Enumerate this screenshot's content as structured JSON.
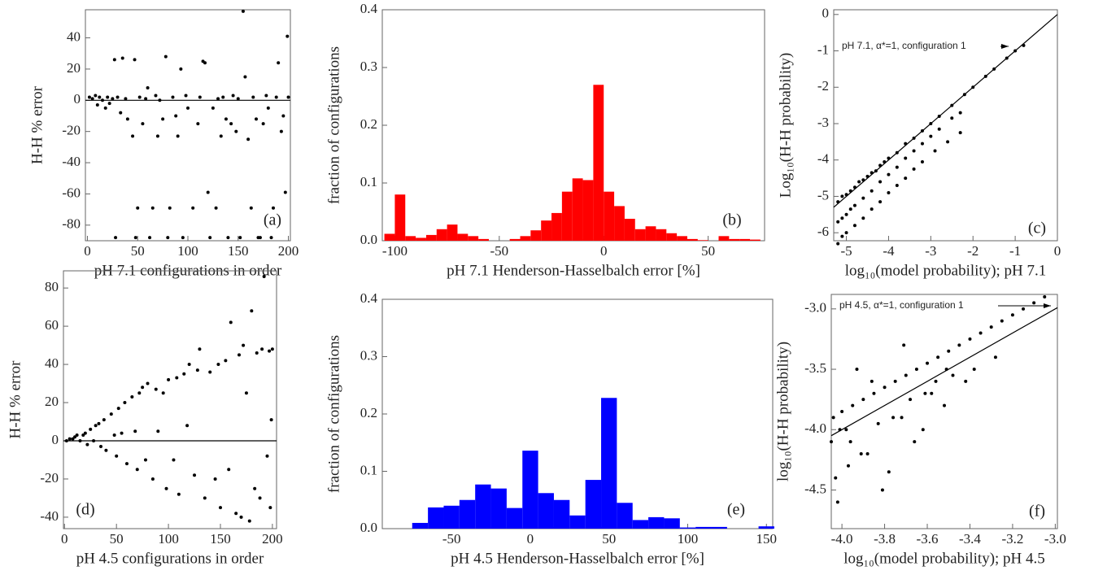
{
  "chart_data": [
    {
      "type": "scatter",
      "panel_label": "(a)",
      "x_label": "pH 7.1 configurations in order",
      "y_label": "H-H % error",
      "color": "#000000",
      "zero_line": true,
      "xlim": [
        -2,
        202
      ],
      "ylim": [
        -90,
        58
      ],
      "xticks": [
        0,
        50,
        100,
        150,
        200
      ],
      "yticks": [
        -80,
        -60,
        -40,
        -20,
        0,
        20,
        40
      ],
      "x": [
        2,
        5,
        8,
        10,
        12,
        15,
        18,
        20,
        22,
        25,
        27,
        28,
        30,
        33,
        35,
        38,
        40,
        45,
        47,
        48,
        50,
        52,
        55,
        58,
        60,
        62,
        65,
        68,
        70,
        72,
        75,
        78,
        80,
        82,
        85,
        88,
        90,
        93,
        95,
        98,
        100,
        105,
        110,
        112,
        115,
        117,
        120,
        122,
        125,
        128,
        130,
        133,
        135,
        138,
        140,
        143,
        145,
        148,
        150,
        152,
        155,
        157,
        160,
        163,
        165,
        168,
        170,
        172,
        175,
        178,
        180,
        183,
        185,
        188,
        190,
        193,
        195,
        197,
        199,
        200
      ],
      "values": [
        2,
        1,
        3,
        -3,
        2,
        0,
        -5,
        2,
        -2,
        1,
        26,
        -88,
        2,
        -8,
        27,
        1,
        -12,
        -23,
        26,
        -88,
        -69,
        2,
        -15,
        1,
        8,
        -88,
        -69,
        3,
        -23,
        0,
        -12,
        28,
        -88,
        -69,
        2,
        -10,
        -23,
        20,
        -88,
        3,
        -5,
        -69,
        -15,
        2,
        25,
        24,
        -59,
        -88,
        -5,
        -69,
        1,
        -23,
        2,
        -12,
        -88,
        -15,
        3,
        -20,
        1,
        -88,
        57,
        15,
        -25,
        -69,
        2,
        -12,
        -88,
        -88,
        -15,
        3,
        -5,
        -88,
        -69,
        2,
        24,
        -20,
        -10,
        -59,
        41,
        2
      ]
    },
    {
      "type": "histogram",
      "panel_label": "(b)",
      "x_label": "pH 7.1 Henderson-Hasselbalch error [%]",
      "y_label": "fraction of configurations",
      "color": "#ff0000",
      "xlim": [
        -106,
        77
      ],
      "ylim": [
        0,
        0.4
      ],
      "xticks": [
        -100,
        -50,
        0,
        50
      ],
      "yticks": [
        {
          "value": 0,
          "label": "0.0"
        },
        0.1,
        0.2,
        0.3,
        0.4
      ],
      "bins": [
        -105,
        -100,
        -95,
        -90,
        -85,
        -80,
        -75,
        -70,
        -65,
        -60,
        -55,
        -50,
        -45,
        -40,
        -35,
        -30,
        -25,
        -20,
        -15,
        -10,
        -5,
        0,
        5,
        10,
        15,
        20,
        25,
        30,
        35,
        40,
        45,
        50,
        55,
        60,
        65,
        70,
        75
      ],
      "values": [
        0.012,
        0.08,
        0.008,
        0.005,
        0.01,
        0.02,
        0.028,
        0.012,
        0.008,
        0.003,
        0,
        0,
        0.003,
        0.008,
        0.018,
        0.035,
        0.048,
        0.085,
        0.108,
        0.105,
        0.27,
        0.085,
        0.06,
        0.038,
        0.02,
        0.025,
        0.02,
        0.013,
        0.008,
        0.003,
        0.001,
        0,
        0.008,
        0.003,
        0.003,
        0.002
      ]
    },
    {
      "type": "scatter",
      "panel_label": "(c)",
      "x_label": "log₁₀(model probability); pH 7.1",
      "y_label": "Log₁₀(H-H probability)",
      "annotation": "pH 7.1, α*=1, configuration 1",
      "color": "#000000",
      "diagonal": true,
      "xlim": [
        -5.3,
        0
      ],
      "ylim": [
        -6.22,
        0.13
      ],
      "xticks": [
        -5,
        -4,
        -3,
        -2,
        -1,
        0
      ],
      "yticks": [
        -6,
        -5,
        -4,
        -3,
        -2,
        -1,
        0
      ],
      "x": [
        -5.2,
        -5.1,
        -5.0,
        -4.9,
        -4.8,
        -4.7,
        -4.6,
        -4.5,
        -4.4,
        -4.3,
        -4.2,
        -4.1,
        -4.0,
        -3.8,
        -3.6,
        -3.4,
        -3.2,
        -3.0,
        -2.8,
        -2.5,
        -2.2,
        -2.0,
        -1.7,
        -1.5,
        -1.2,
        -1.0,
        -0.8,
        -5.2,
        -5.1,
        -5.0,
        -4.9,
        -4.8,
        -4.6,
        -4.4,
        -4.2,
        -4.0,
        -3.8,
        -3.6,
        -3.4,
        -3.2,
        -3.0,
        -2.8,
        -2.5,
        -2.3,
        -5.2,
        -5.1,
        -5.0,
        -4.8,
        -4.6,
        -4.4,
        -4.2,
        -4.0,
        -3.8,
        -3.6,
        -3.4,
        -3.2,
        -2.9,
        -2.6,
        -2.3
      ],
      "values": [
        -5.15,
        -5.0,
        -4.95,
        -4.85,
        -4.75,
        -4.6,
        -4.55,
        -4.45,
        -4.35,
        -4.3,
        -4.15,
        -4.05,
        -3.95,
        -3.8,
        -3.55,
        -3.4,
        -3.2,
        -3.0,
        -2.8,
        -2.5,
        -2.2,
        -2.0,
        -1.7,
        -1.5,
        -1.2,
        -1.0,
        -0.85,
        -5.7,
        -5.6,
        -5.5,
        -5.35,
        -5.25,
        -5.05,
        -4.85,
        -4.6,
        -4.4,
        -4.2,
        -3.95,
        -3.75,
        -3.55,
        -3.35,
        -3.15,
        -2.85,
        -2.7,
        -6.3,
        -6.1,
        -6.0,
        -5.8,
        -5.6,
        -5.35,
        -5.15,
        -4.9,
        -4.7,
        -4.5,
        -4.25,
        -4.05,
        -3.75,
        -3.5,
        -3.25
      ]
    },
    {
      "type": "scatter",
      "panel_label": "(d)",
      "x_label": "pH 4.5 configurations in order",
      "y_label": "H-H % error",
      "color": "#000000",
      "zero_line": true,
      "xlim": [
        -1,
        204
      ],
      "ylim": [
        -46,
        89
      ],
      "xticks": [
        0,
        50,
        100,
        150,
        200
      ],
      "yticks": [
        -40,
        -20,
        0,
        20,
        40,
        60,
        80
      ],
      "x": [
        2,
        5,
        8,
        10,
        12,
        15,
        18,
        20,
        22,
        25,
        28,
        30,
        33,
        35,
        38,
        40,
        45,
        48,
        50,
        52,
        55,
        58,
        60,
        65,
        68,
        70,
        72,
        75,
        78,
        80,
        85,
        88,
        90,
        95,
        98,
        100,
        105,
        108,
        110,
        115,
        118,
        120,
        125,
        128,
        130,
        135,
        140,
        145,
        148,
        150,
        155,
        158,
        160,
        165,
        168,
        170,
        172,
        175,
        178,
        180,
        183,
        185,
        188,
        190,
        192,
        195,
        197,
        198,
        200,
        199
      ],
      "values": [
        0,
        1,
        1,
        2,
        3,
        0,
        3,
        4,
        -2,
        6,
        0,
        8,
        9,
        -3,
        11,
        -5,
        14,
        3,
        -8,
        17,
        4,
        20,
        -12,
        23,
        5,
        -15,
        25,
        28,
        -10,
        30,
        -20,
        27,
        5,
        25,
        -25,
        32,
        -10,
        33,
        -28,
        35,
        8,
        40,
        -18,
        37,
        48,
        -30,
        36,
        -20,
        40,
        -35,
        42,
        -15,
        62,
        -38,
        45,
        -40,
        50,
        25,
        -42,
        68,
        -25,
        46,
        -30,
        48,
        86,
        -8,
        47,
        -35,
        48,
        11
      ]
    },
    {
      "type": "histogram",
      "panel_label": "(e)",
      "x_label": "pH 4.5 Henderson-Hasselbalch error [%]",
      "y_label": "fraction of configurations",
      "color": "#0000ff",
      "xlim": [
        -94,
        154
      ],
      "ylim": [
        0,
        0.4
      ],
      "xticks": [
        -50,
        0,
        50,
        100,
        150
      ],
      "yticks": [
        {
          "value": 0,
          "label": "0.0"
        },
        0.1,
        0.2,
        0.3,
        0.4
      ],
      "bins": [
        -75,
        -65,
        -55,
        -45,
        -35,
        -25,
        -15,
        -5,
        5,
        15,
        25,
        35,
        45,
        55,
        65,
        75,
        85,
        95,
        105,
        115,
        125,
        135,
        145,
        155
      ],
      "values": [
        0.01,
        0.037,
        0.04,
        0.05,
        0.077,
        0.07,
        0.036,
        0.136,
        0.062,
        0.05,
        0.023,
        0.085,
        0.228,
        0.045,
        0.015,
        0.02,
        0.018,
        0.002,
        0.003,
        0.003,
        0,
        0,
        0.004
      ]
    },
    {
      "type": "scatter",
      "panel_label": "(f)",
      "x_label": "log₁₀(model probability); pH 4.5",
      "y_label": "log₁₀(H-H probability)",
      "annotation": "pH 4.5, α*=1, configuration 1",
      "color": "#000000",
      "diagonal": true,
      "xlim": [
        -4.05,
        -2.99
      ],
      "ylim": [
        -4.82,
        -2.88
      ],
      "xticks": [
        {
          "value": -4,
          "label": "-4.0"
        },
        -3.8,
        -3.6,
        -3.4,
        -3.2,
        {
          "value": -3,
          "label": "-3.0"
        }
      ],
      "yticks": [
        -4.5,
        {
          "value": -4,
          "label": "-4.0"
        },
        -3.5,
        {
          "value": -3,
          "label": "-3.0"
        }
      ],
      "x": [
        -4.05,
        -4.04,
        -4.03,
        -4.02,
        -4.0,
        -3.98,
        -3.97,
        -3.95,
        -3.93,
        -3.9,
        -3.88,
        -3.85,
        -3.83,
        -3.8,
        -3.78,
        -3.75,
        -3.72,
        -3.7,
        -3.68,
        -3.65,
        -3.62,
        -3.6,
        -3.58,
        -3.55,
        -3.52,
        -3.5,
        -3.48,
        -3.45,
        -3.42,
        -3.4,
        -3.38,
        -3.35,
        -3.3,
        -3.28,
        -3.25,
        -3.2,
        -3.15,
        -3.1,
        -3.05,
        -4.01,
        -3.96,
        -3.91,
        -3.86,
        -3.81,
        -3.76,
        -3.71,
        -3.66,
        -3.61,
        -3.56,
        -3.51
      ],
      "values": [
        -4.1,
        -3.9,
        -4.4,
        -4.6,
        -3.85,
        -4.0,
        -4.3,
        -3.8,
        -3.5,
        -3.75,
        -4.2,
        -3.7,
        -3.95,
        -3.65,
        -4.35,
        -3.6,
        -3.9,
        -3.55,
        -3.75,
        -3.5,
        -4.0,
        -3.45,
        -3.7,
        -3.4,
        -3.8,
        -3.35,
        -3.55,
        -3.3,
        -3.6,
        -3.25,
        -3.5,
        -3.2,
        -3.15,
        -3.4,
        -3.1,
        -3.05,
        -3.0,
        -2.95,
        -2.9,
        -4.0,
        -4.1,
        -4.2,
        -3.6,
        -4.5,
        -3.9,
        -3.3,
        -4.1,
        -3.7,
        -3.6,
        -3.5
      ]
    }
  ]
}
